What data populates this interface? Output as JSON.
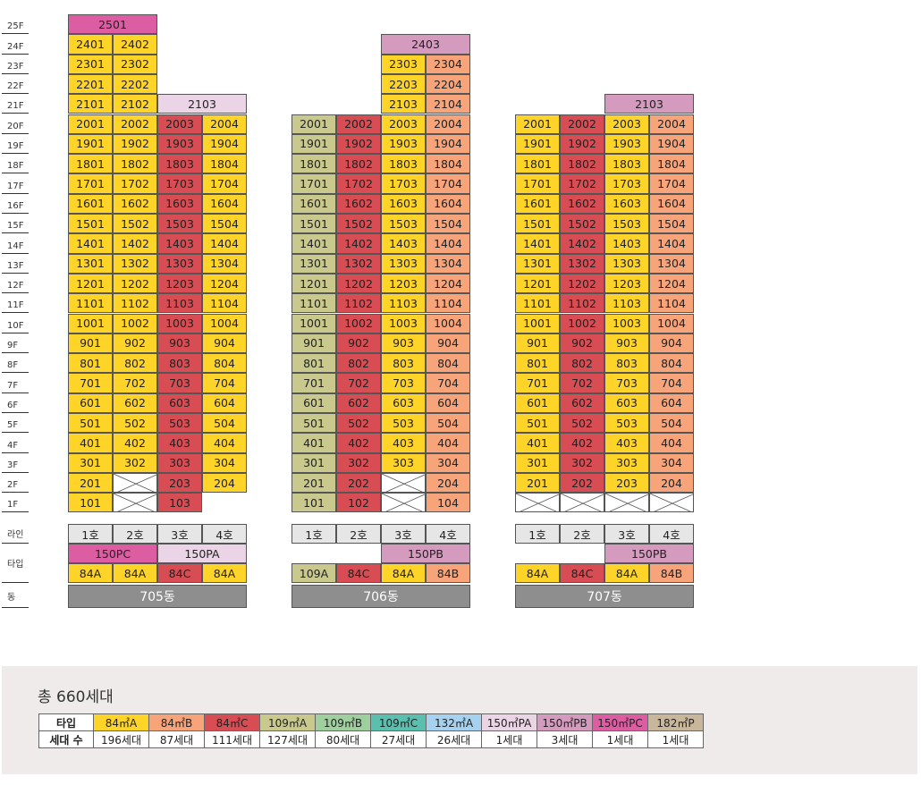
{
  "colors": {
    "84A": "#ffd428",
    "84B": "#f7a47a",
    "84C": "#d84c53",
    "109A": "#c9c98e",
    "150PA": "#ead4e6",
    "150PB": "#d49bbf",
    "150PC": "#dd5da3",
    "line_bg": "#e6e6e6",
    "dong_bg": "#8e8e8e",
    "void": "#ffffff"
  },
  "floors": [
    "25F",
    "24F",
    "23F",
    "22F",
    "21F",
    "20F",
    "19F",
    "18F",
    "17F",
    "16F",
    "15F",
    "14F",
    "13F",
    "12F",
    "11F",
    "10F",
    "9F",
    "8F",
    "7F",
    "6F",
    "5F",
    "4F",
    "3F",
    "2F",
    "1F"
  ],
  "side_labels": {
    "line": "라인",
    "type": "타입",
    "dong": "동"
  },
  "buildings": [
    {
      "name": "705동",
      "lines": [
        "1호",
        "2호",
        "3호",
        "4호"
      ],
      "line_types": [
        "84A",
        "84A",
        "84C",
        "84A"
      ],
      "penthouse_labels": [
        {
          "label": "150PC",
          "type": "150PC",
          "span": [
            0,
            1
          ]
        },
        {
          "label": "150PA",
          "type": "150PA",
          "span": [
            2,
            3
          ]
        }
      ],
      "columns": [
        {
          "type": "84A",
          "top": 24,
          "bottom": 1,
          "void": []
        },
        {
          "type": "84A",
          "top": 24,
          "bottom": 3,
          "void": [
            2,
            1
          ]
        },
        {
          "type": "84C",
          "top": 20,
          "bottom": 1,
          "void": []
        },
        {
          "type": "84A",
          "top": 20,
          "bottom": 2,
          "void": []
        }
      ],
      "specials": [
        {
          "label": "2501",
          "floor": 25,
          "span": [
            0,
            1
          ],
          "type": "150PC"
        },
        {
          "label": "2103",
          "floor": 21,
          "span": [
            2,
            3
          ],
          "type": "150PA"
        }
      ]
    },
    {
      "name": "706동",
      "lines": [
        "1호",
        "2호",
        "3호",
        "4호"
      ],
      "line_types": [
        "109A",
        "84C",
        "84A",
        "84B"
      ],
      "penthouse_labels": [
        {
          "label": "150PB",
          "type": "150PB",
          "span": [
            2,
            3
          ]
        }
      ],
      "columns": [
        {
          "type": "109A",
          "top": 20,
          "bottom": 1,
          "void": []
        },
        {
          "type": "84C",
          "top": 20,
          "bottom": 1,
          "void": []
        },
        {
          "type": "84A",
          "top": 23,
          "bottom": 3,
          "void": [
            2,
            1
          ]
        },
        {
          "type": "84B",
          "top": 23,
          "bottom": 1,
          "void": []
        }
      ],
      "specials": [
        {
          "label": "2403",
          "floor": 24,
          "span": [
            2,
            3
          ],
          "type": "150PB"
        }
      ]
    },
    {
      "name": "707동",
      "lines": [
        "1호",
        "2호",
        "3호",
        "4호"
      ],
      "line_types": [
        "84A",
        "84C",
        "84A",
        "84B"
      ],
      "penthouse_labels": [
        {
          "label": "150PB",
          "type": "150PB",
          "span": [
            2,
            3
          ]
        }
      ],
      "columns": [
        {
          "type": "84A",
          "top": 20,
          "bottom": 2,
          "void": [
            1
          ]
        },
        {
          "type": "84C",
          "top": 20,
          "bottom": 2,
          "void": [
            1
          ]
        },
        {
          "type": "84A",
          "top": 20,
          "bottom": 2,
          "void": [
            1
          ]
        },
        {
          "type": "84B",
          "top": 20,
          "bottom": 2,
          "void": [
            1
          ]
        }
      ],
      "specials": [
        {
          "label": "2103",
          "floor": 21,
          "span": [
            2,
            3
          ],
          "type": "150PB"
        }
      ]
    }
  ],
  "legend": {
    "title": "총 660세대",
    "row_headers": [
      "타입",
      "세대 수"
    ],
    "items": [
      {
        "type": "84㎡A",
        "count": "196세대",
        "color": "#ffd428"
      },
      {
        "type": "84㎡B",
        "count": "87세대",
        "color": "#f7a47a"
      },
      {
        "type": "84㎡C",
        "count": "111세대",
        "color": "#d84c53"
      },
      {
        "type": "109㎡A",
        "count": "127세대",
        "color": "#c9c98e"
      },
      {
        "type": "109㎡B",
        "count": "80세대",
        "color": "#9fce9f"
      },
      {
        "type": "109㎡C",
        "count": "27세대",
        "color": "#5bbfb0"
      },
      {
        "type": "132㎡A",
        "count": "26세대",
        "color": "#a6d2ef"
      },
      {
        "type": "150㎡PA",
        "count": "1세대",
        "color": "#ead4e6"
      },
      {
        "type": "150㎡PB",
        "count": "3세대",
        "color": "#d49bbf"
      },
      {
        "type": "150㎡PC",
        "count": "1세대",
        "color": "#dd5da3"
      },
      {
        "type": "182㎡P",
        "count": "1세대",
        "color": "#c9b79c"
      }
    ]
  }
}
